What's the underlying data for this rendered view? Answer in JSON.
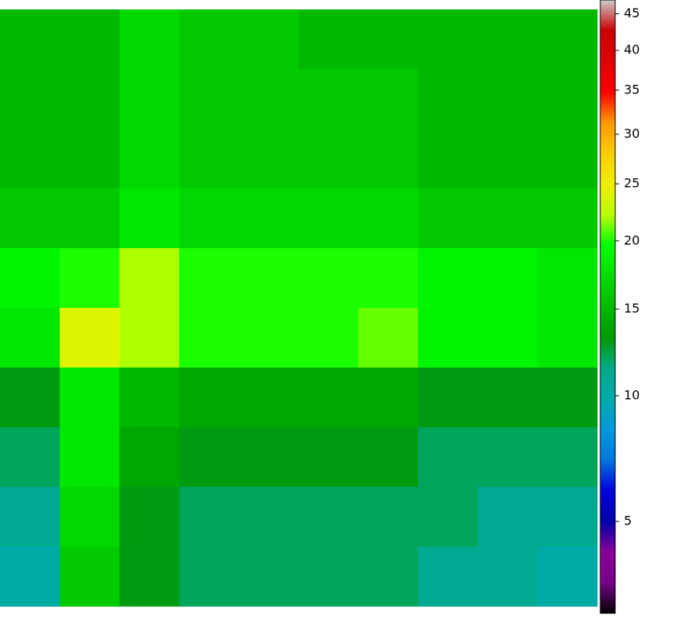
{
  "chart_data": {
    "type": "heatmap",
    "colormap": "nipy_spectral",
    "color_scale": "power",
    "color_exponent": 0.3,
    "clim": [
      2.7,
      47
    ],
    "cticks": [
      5,
      10,
      15,
      20,
      25,
      30,
      35,
      40,
      45
    ],
    "z": [
      [
        15,
        15,
        17,
        16,
        16,
        15,
        15,
        15,
        15,
        15
      ],
      [
        15,
        15,
        17,
        16,
        16,
        16,
        16,
        15,
        15,
        15
      ],
      [
        15,
        15,
        17,
        16,
        16,
        16,
        16,
        15,
        15,
        15
      ],
      [
        16,
        16,
        18,
        17,
        17,
        17,
        17,
        16,
        16,
        16
      ],
      [
        19,
        20,
        22,
        20,
        20,
        20,
        20,
        19,
        19,
        18
      ],
      [
        18,
        24,
        22,
        20,
        20,
        20,
        21,
        19,
        19,
        18
      ],
      [
        13,
        18,
        15,
        14,
        14,
        14,
        14,
        13,
        13,
        13
      ],
      [
        12,
        18,
        14,
        13,
        13,
        13,
        13,
        12,
        12,
        12
      ],
      [
        11,
        17,
        13,
        12,
        12,
        12,
        12,
        12,
        11,
        11
      ],
      [
        10,
        16,
        13,
        12,
        12,
        12,
        12,
        11,
        11,
        10
      ]
    ]
  }
}
